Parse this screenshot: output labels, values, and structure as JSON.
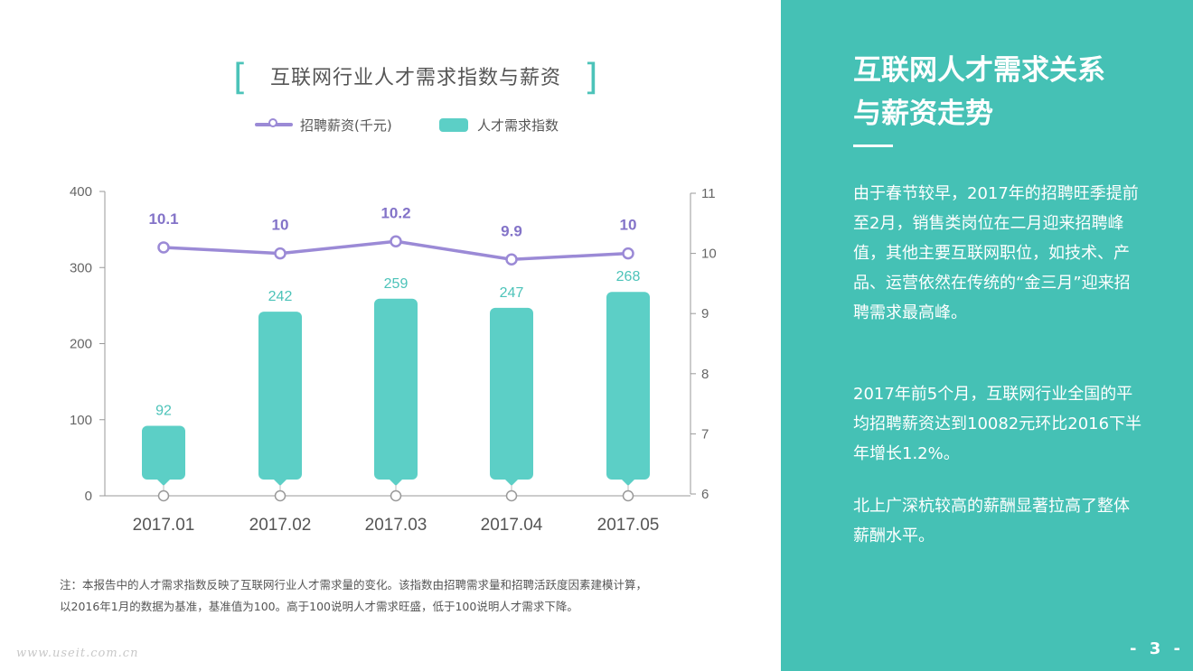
{
  "chart_data": {
    "type": "bar+line",
    "title": "互联网行业人才需求指数与薪资",
    "categories": [
      "2017.01",
      "2017.02",
      "2017.03",
      "2017.04",
      "2017.05"
    ],
    "series": [
      {
        "name": "人才需求指数",
        "type": "bar",
        "axis": "left",
        "values": [
          92,
          242,
          259,
          247,
          268
        ],
        "labels": [
          "92",
          "242",
          "259",
          "247",
          "268"
        ]
      },
      {
        "name": "招聘薪资(千元)",
        "type": "line",
        "axis": "right",
        "values": [
          10.1,
          10.0,
          10.2,
          9.9,
          10.0
        ],
        "labels": [
          "10.1",
          "10",
          "10.2",
          "9.9",
          "10"
        ]
      }
    ],
    "y_left": {
      "min": 0,
      "max": 400,
      "ticks": [
        "0",
        "100",
        "200",
        "300",
        "400"
      ]
    },
    "y_right": {
      "min": 6,
      "max": 11,
      "ticks": [
        "6",
        "7",
        "8",
        "9",
        "10",
        "11"
      ]
    },
    "legend": [
      "招聘薪资(千元)",
      "人才需求指数"
    ],
    "legend_position": "top",
    "colors": {
      "bar": "#5ccfc6",
      "bar_label": "#4cc3b9",
      "line": "#9b8ad6",
      "line_label": "#8373c8",
      "axis": "#666666"
    }
  },
  "note": {
    "line1": "注：本报告中的人才需求指数反映了互联网行业人才需求量的变化。该指数由招聘需求量和招聘活跃度因素建模计算，",
    "line2": "以2016年1月的数据为基准，基准值为100。高于100说明人才需求旺盛，低于100说明人才需求下降。"
  },
  "watermark": "www.useit.com.cn",
  "panel": {
    "title_line1": "互联网人才需求关系",
    "title_line2": "与薪资走势",
    "para1": "由于春节较早，2017年的招聘旺季提前至2月，销售类岗位在二月迎来招聘峰值，其他主要互联网职位，如技术、产品、运营依然在传统的“金三月”迎来招聘需求最高峰。",
    "para2": "2017年前5个月，互联网行业全国的平均招聘薪资达到10082元环比2016下半年增长1.2%。",
    "para3": "北上广深杭较高的薪酬显著拉高了整体薪酬水平。",
    "page_number": "- 3 -",
    "background": "#45c1b5"
  }
}
